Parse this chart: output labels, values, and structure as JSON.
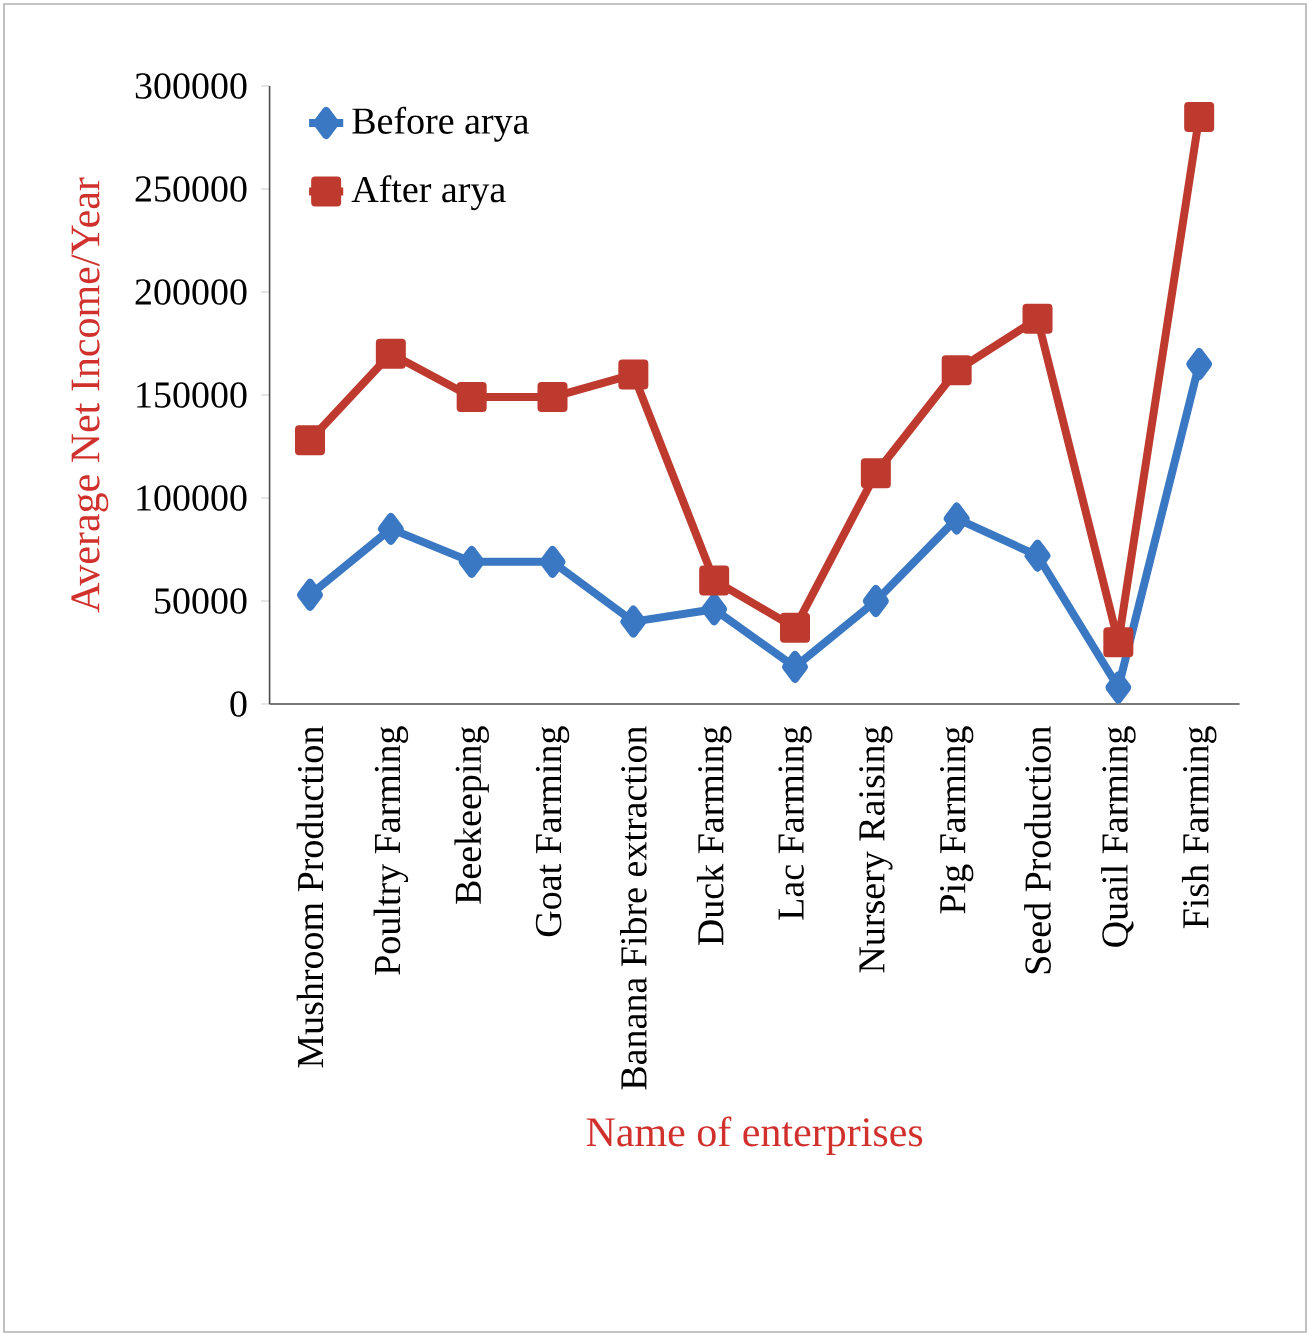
{
  "chart_data": {
    "type": "line",
    "xlabel": "Name of enterprises",
    "ylabel": "Average  Net Income/Year",
    "categories": [
      "Mushroom Production",
      "Poultry Farming",
      "Beekeeping",
      "Goat Farming",
      "Banana Fibre extraction",
      "Duck Farming",
      "Lac Farming",
      "Nursery Raising",
      "Pig Farming",
      "Seed Production",
      "Quail Farming",
      "Fish Farming"
    ],
    "series": [
      {
        "name": "Before arya",
        "color": "#3a78c3",
        "marker": "diamond",
        "values": [
          53000,
          85000,
          69000,
          69000,
          40000,
          46000,
          18000,
          50000,
          90000,
          72000,
          8000,
          165000
        ]
      },
      {
        "name": "After arya",
        "color": "#be3a2e",
        "marker": "square",
        "values": [
          128000,
          170000,
          149000,
          149000,
          160000,
          60000,
          37000,
          112000,
          162000,
          187000,
          30000,
          285000
        ]
      }
    ],
    "ylim": [
      0,
      300000
    ],
    "yticks": [
      0,
      50000,
      100000,
      150000,
      200000,
      250000,
      300000
    ],
    "legend": "top left"
  }
}
